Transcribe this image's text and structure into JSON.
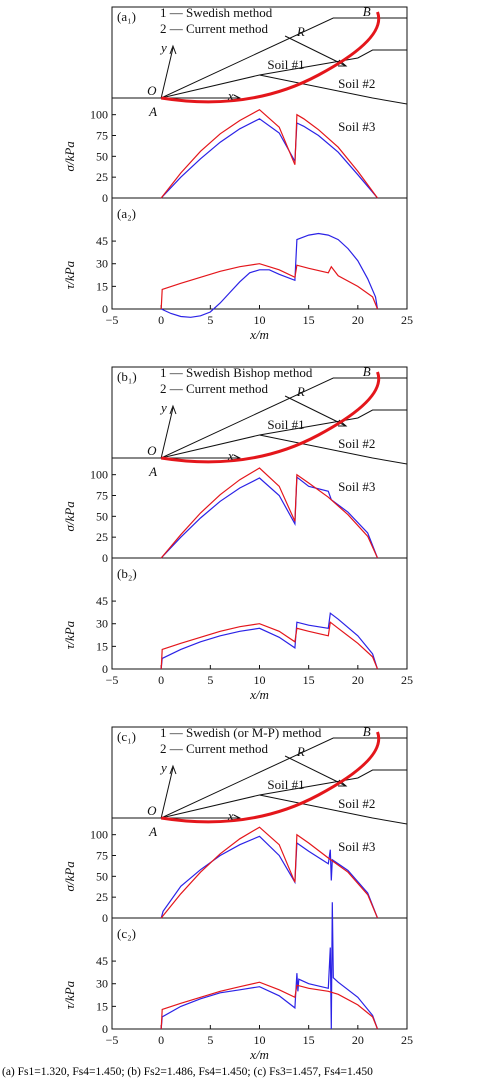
{
  "colors": {
    "current": "#e4161b",
    "swedish": "#2b22e6",
    "ink": "#111111"
  },
  "caption": "(a) Fs1=1.320, Fs4=1.450;  (b) Fs2=1.486, Fs4=1.450;  (c) Fs3=1.457, Fs4=1.450",
  "chart_data": [
    {
      "panel": "a",
      "type": "line",
      "geometry": {
        "label": "(a₁)",
        "legend": [
          "1 — Swedish method",
          "2 — Current method"
        ],
        "labels": {
          "R": "R",
          "B": "B",
          "O": "O",
          "A": "A",
          "x": "x",
          "y": "y",
          "soil1": "Soil #1",
          "soil2": "Soil #2",
          "soil3": "Soil #3"
        }
      },
      "sigma": {
        "label": "",
        "ylabel": "σ/kPa",
        "ylim": [
          0,
          120
        ],
        "yticks": [
          "0",
          "25",
          "50",
          "75",
          "100"
        ],
        "series": [
          {
            "name": "1",
            "color": "blue",
            "x": [
              0,
              2,
              4,
              6,
              8,
              10,
              12,
              13.6,
              13.8,
              14.5,
              16,
              18,
              20,
              22
            ],
            "y": [
              0,
              25,
              47,
              67,
              83,
              95,
              78,
              44,
              90,
              86,
              75,
              55,
              28,
              0
            ]
          },
          {
            "name": "2",
            "color": "red",
            "x": [
              0,
              2,
              4,
              6,
              8,
              10,
              12,
              13.6,
              13.8,
              14.5,
              16,
              18,
              20,
              22
            ],
            "y": [
              0,
              30,
              56,
              77,
              93,
              106,
              85,
              40,
              100,
              95,
              82,
              61,
              32,
              0
            ]
          }
        ]
      },
      "tau": {
        "label": "(a₂)",
        "ylabel": "τ/kPa",
        "xlabel": "x/m",
        "ylim": [
          0,
          55
        ],
        "xlim": [
          -5,
          25
        ],
        "yticks": [
          "0",
          "15",
          "30",
          "45"
        ],
        "xticks": [
          "−5",
          "0",
          "5",
          "10",
          "15",
          "20",
          "25"
        ],
        "series": [
          {
            "name": "1",
            "color": "blue",
            "x": [
              0,
              1,
              2,
              3,
              4,
              5,
              6,
              7,
              8,
              9,
              10,
              11,
              12,
              13.6,
              13.8,
              15,
              16,
              17,
              18,
              19,
              20,
              21,
              21.8,
              22
            ],
            "y": [
              0,
              -3,
              -5,
              -5.5,
              -4.5,
              -2,
              4,
              11,
              18,
              24,
              26,
              26,
              23,
              19,
              46,
              49,
              50,
              49,
              46,
              40,
              32,
              20,
              8,
              0
            ]
          },
          {
            "name": "2",
            "color": "red",
            "x": [
              0,
              0.1,
              2,
              4,
              6,
              8,
              10,
              12,
              13.6,
              13.8,
              15,
              17,
              17.3,
              18,
              20,
              21.5,
              22
            ],
            "y": [
              0,
              13,
              17,
              21,
              25,
              28,
              30,
              26,
              21,
              29,
              27,
              24,
              28,
              22,
              15,
              8,
              0
            ]
          }
        ]
      }
    },
    {
      "panel": "b",
      "type": "line",
      "geometry": {
        "label": "(b₁)",
        "legend": [
          "1 — Swedish Bishop method",
          "2 — Current method"
        ],
        "labels": {
          "R": "R",
          "B": "B",
          "O": "O",
          "A": "A",
          "x": "x",
          "y": "y",
          "soil1": "Soil #1",
          "soil2": "Soil #2",
          "soil3": "Soil #3"
        }
      },
      "sigma": {
        "label": "",
        "ylabel": "σ/kPa",
        "ylim": [
          0,
          120
        ],
        "yticks": [
          "0",
          "25",
          "50",
          "75",
          "100"
        ],
        "series": [
          {
            "name": "1",
            "color": "blue",
            "x": [
              0,
              2,
              4,
              6,
              8,
              10,
              12,
              13.6,
              13.8,
              15,
              17,
              17.3,
              19,
              21,
              22
            ],
            "y": [
              0,
              25,
              48,
              68,
              84,
              96,
              75,
              41,
              97,
              86,
              80,
              70,
              55,
              30,
              0
            ]
          },
          {
            "name": "2",
            "color": "red",
            "x": [
              0,
              2,
              4,
              6,
              8,
              10,
              12,
              13.6,
              13.8,
              15,
              17,
              19,
              21,
              22
            ],
            "y": [
              0,
              28,
              54,
              76,
              94,
              108,
              86,
              44,
              100,
              90,
              73,
              52,
              26,
              0
            ]
          }
        ]
      },
      "tau": {
        "label": "(b₂)",
        "ylabel": "τ/kPa",
        "xlabel": "x/m",
        "ylim": [
          0,
          55
        ],
        "xlim": [
          -5,
          25
        ],
        "yticks": [
          "0",
          "15",
          "30",
          "45"
        ],
        "xticks": [
          "−5",
          "0",
          "5",
          "10",
          "15",
          "20",
          "25"
        ],
        "series": [
          {
            "name": "1",
            "color": "blue",
            "x": [
              0,
              0.1,
              2,
              4,
              6,
              8,
              10,
              12,
              13.6,
              13.8,
              15,
              17,
              17.2,
              18,
              20,
              21.5,
              22
            ],
            "y": [
              0,
              7,
              13,
              18,
              22,
              25,
              27,
              21,
              14,
              31,
              29,
              27,
              37,
              33,
              22,
              10,
              0
            ]
          },
          {
            "name": "2",
            "color": "red",
            "x": [
              0,
              0.1,
              2,
              4,
              6,
              8,
              10,
              12,
              13.6,
              13.8,
              15,
              17,
              17.2,
              18,
              20,
              21.5,
              22
            ],
            "y": [
              0,
              13,
              17,
              21,
              25,
              28,
              30,
              25,
              18,
              27,
              25,
              22,
              31,
              27,
              17,
              8,
              0
            ]
          }
        ]
      }
    },
    {
      "panel": "c",
      "type": "line",
      "geometry": {
        "label": "(c₁)",
        "legend": [
          "1 — Swedish (or M-P) method",
          "2 — Current method"
        ],
        "labels": {
          "R": "R",
          "B": "B",
          "O": "O",
          "A": "A",
          "x": "x",
          "y": "y",
          "soil1": "Soil #1",
          "soil2": "Soil #2",
          "soil3": "Soil #3"
        }
      },
      "sigma": {
        "label": "",
        "ylabel": "σ/kPa",
        "ylim": [
          0,
          120
        ],
        "yticks": [
          "0",
          "25",
          "50",
          "75",
          "100"
        ],
        "series": [
          {
            "name": "1",
            "color": "blue",
            "x": [
              0,
              0.2,
              2,
              4,
              6,
              8,
              10,
              12,
              13.6,
              13.8,
              15,
              17,
              17.2,
              17.3,
              17.4,
              19,
              21,
              22
            ],
            "y": [
              0,
              8,
              38,
              58,
              75,
              88,
              98,
              75,
              43,
              90,
              80,
              65,
              82,
              45,
              70,
              57,
              30,
              0
            ]
          },
          {
            "name": "2",
            "color": "red",
            "x": [
              0,
              2,
              4,
              6,
              8,
              10,
              12,
              13.6,
              13.8,
              15,
              17,
              19,
              21,
              22
            ],
            "y": [
              0,
              29,
              55,
              77,
              95,
              109,
              88,
              43,
              100,
              90,
              72,
              55,
              28,
              0
            ]
          }
        ]
      },
      "tau": {
        "label": "(c₂)",
        "ylabel": "τ/kPa",
        "xlabel": "x/m",
        "ylim": [
          0,
          55
        ],
        "xlim": [
          -5,
          25
        ],
        "yticks": [
          "0",
          "15",
          "30",
          "45"
        ],
        "xticks": [
          "−5",
          "0",
          "5",
          "10",
          "15",
          "20",
          "25"
        ],
        "series": [
          {
            "name": "1",
            "color": "blue",
            "x": [
              0,
              0.1,
              2,
              4,
              6,
              8,
              10,
              12,
              13.6,
              13.8,
              13.9,
              14,
              15,
              17,
              17.2,
              17.3,
              17.4,
              17.5,
              18,
              20,
              21.5,
              22
            ],
            "y": [
              0,
              8,
              15,
              20,
              24,
              26,
              28,
              22,
              14,
              37,
              25,
              33,
              30,
              27,
              54,
              0,
              84,
              34,
              31,
              21,
              9,
              0
            ]
          },
          {
            "name": "2",
            "color": "red",
            "x": [
              0,
              0.1,
              2,
              4,
              6,
              8,
              10,
              12,
              13.6,
              13.8,
              15,
              17,
              18,
              20,
              21.5,
              22
            ],
            "y": [
              0,
              13,
              17,
              21,
              25,
              28,
              31,
              26,
              21,
              29,
              27,
              25,
              23,
              16,
              8,
              0
            ]
          }
        ]
      }
    }
  ]
}
